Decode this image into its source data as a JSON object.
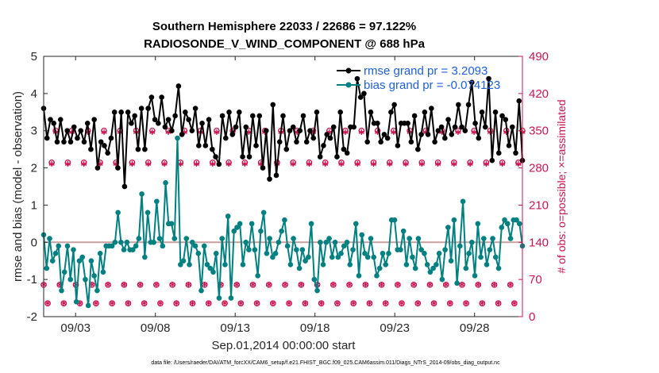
{
  "chart_data": {
    "type": "line",
    "title_line1": "Southern Hemisphere 22033 / 22686 = 97.122%",
    "title_line2": "RADIOSONDE_V_WIND_COMPONENT @ 688 hPa",
    "xlabel": "Sep.01,2014 00:00:00 start",
    "ylabel": "rmse and bias (model - observation)",
    "ylabel_right": "# of obs: o=possible; ×=assimilated",
    "footer": "data file: /Users/raeder/DAI/ATM_forcXX/CAM6_setup/f.e21.FHIST_BGC.f09_025.CAM6assim.011/Diags_NTrS_2014-09/obs_diag_output.nc",
    "xlim": [
      1.0,
      31.0
    ],
    "ylim": [
      -2,
      5
    ],
    "ylim_right": [
      0,
      490
    ],
    "x_ticks": [
      3,
      8,
      13,
      18,
      23,
      28
    ],
    "x_tick_labels": [
      "09/03",
      "09/08",
      "09/13",
      "09/18",
      "09/23",
      "09/28"
    ],
    "y_ticks": [
      -2,
      -1,
      0,
      1,
      2,
      3,
      4,
      5
    ],
    "y_tick_labels": [
      "-2",
      "-1",
      "0",
      "1",
      "2",
      "3",
      "4",
      "5"
    ],
    "y_right_ticks": [
      0,
      70,
      140,
      210,
      280,
      350,
      420,
      490
    ],
    "y_right_tick_labels": [
      "0",
      "70",
      "140",
      "210",
      "280",
      "350",
      "420",
      "490"
    ],
    "zero_line": 0,
    "legend_position": "top-right",
    "colors": {
      "rmse": "#000000",
      "bias": "#008080",
      "obs": "#cc1450",
      "zero_line": "#c8a0a0",
      "legend_text": "#1f5fdc"
    },
    "series": [
      {
        "name": "rmse grand pr = 3.2093",
        "values": [
          3.6,
          2.8,
          3.3,
          3.2,
          2.7,
          3.3,
          2.7,
          3.0,
          2.7,
          3.1,
          2.8,
          3.0,
          2.7,
          3.2,
          2.5,
          3.3,
          2.0,
          2.7,
          2.6,
          2.4,
          2.8,
          3.5,
          2.0,
          3.5,
          1.5,
          3.5,
          3.2,
          3.4,
          2.5,
          3.6,
          2.5,
          3.6,
          3.9,
          3.3,
          3.2,
          3.9,
          3.1,
          3.3,
          3.0,
          3.4,
          4.2,
          2.9,
          3.5,
          3.3,
          3.0,
          3.6,
          2.6,
          3.2,
          2.6,
          3.3,
          2.5,
          2.3,
          2.1,
          3.4,
          2.8,
          3.5,
          2.9,
          3.1,
          3.5,
          2.3,
          3.1,
          2.3,
          3.4,
          2.6,
          3.4,
          2.0,
          3.0,
          1.7,
          3.7,
          1.8,
          2.7,
          3.4,
          2.5,
          3.0,
          3.1,
          2.7,
          3.0,
          3.4,
          2.7,
          3.0,
          2.8,
          3.5,
          2.3,
          2.6,
          2.9,
          2.8,
          3.1,
          2.3,
          3.5,
          2.5,
          2.4,
          3.1,
          3.1,
          4.4,
          3.9,
          4.0,
          2.7,
          3.5,
          3.2,
          3.2,
          2.7,
          2.9,
          2.8,
          3.5,
          3.7,
          2.6,
          3.2,
          3.2,
          3.2,
          2.7,
          3.4,
          2.5,
          2.9,
          3.5,
          2.9,
          3.6,
          2.7,
          3.0,
          3.1,
          2.8,
          3.3,
          2.9,
          3.1,
          3.7,
          3.1,
          3.0,
          3.7,
          4.3,
          3.2,
          2.8,
          3.5,
          3.1,
          4.4,
          2.2,
          3.5,
          2.4,
          3.4,
          3.3,
          2.6,
          3.1,
          2.4,
          3.8,
          2.2
        ]
      },
      {
        "name": "bias grand pr = -0.074123",
        "values": [
          0.2,
          -0.7,
          0.1,
          -0.5,
          -0.3,
          -0.1,
          -1.3,
          -0.8,
          -0.1,
          -1.0,
          -0.2,
          -1.6,
          -0.5,
          -0.4,
          -1.0,
          -1.7,
          -0.5,
          -0.9,
          -1.3,
          -0.3,
          -0.8,
          -0.1,
          -0.1,
          -0.1,
          0.0,
          0.8,
          0.0,
          -0.2,
          0.0,
          -0.2,
          -0.2,
          -0.1,
          0.1,
          1.3,
          -0.4,
          0.8,
          0.0,
          0.0,
          1.1,
          0.1,
          -0.1,
          1.6,
          0.5,
          0.5,
          0.1,
          2.8,
          -0.6,
          -0.5,
          0.1,
          -0.6,
          0.0,
          -0.1,
          -0.3,
          -1.3,
          -0.1,
          -0.6,
          -0.7,
          -0.8,
          -0.3,
          -1.5,
          0.1,
          -0.6,
          0.7,
          -1.5,
          0.3,
          0.4,
          0.5,
          -0.6,
          0.0,
          -0.2,
          0.5,
          -0.2,
          -0.9,
          0.3,
          0.8,
          -0.3,
          0.1,
          -0.4,
          -0.3,
          0.0,
          0.3,
          0.6,
          -0.1,
          -0.6,
          0.1,
          -0.2,
          -0.7,
          -0.2,
          -0.5,
          -0.4,
          0.5,
          -1.0,
          -1.3,
          0.0,
          -0.6,
          0.0,
          0.1,
          -0.4,
          0.0,
          -0.4,
          -0.3,
          -0.1,
          0.0,
          -0.6,
          -0.2,
          0.5,
          -0.9,
          0.2,
          -0.3,
          -0.4,
          0.1,
          -0.4,
          -0.9,
          -0.7,
          -0.3,
          -0.6,
          -0.3,
          0.6,
          0.6,
          -0.2,
          -0.2,
          0.3,
          -0.6,
          0.1,
          -0.4,
          -0.7,
          0.1,
          -0.2,
          -0.3,
          -0.6,
          -0.8,
          -0.7,
          -0.6,
          -0.3,
          -1.0,
          -0.2,
          0.4,
          -0.5,
          0.6,
          -1.1,
          -0.1,
          1.1,
          -0.7,
          -0.3,
          0.0,
          -0.9,
          0.5,
          -0.4,
          0.1,
          -0.6,
          -0.2,
          0.1,
          -0.4,
          -0.7,
          0.4,
          0.6,
          0.5,
          0.1,
          0.6,
          0.6,
          0.5,
          -0.1
        ]
      },
      {
        "name": "obs possible",
        "marker": "o",
        "values": [
          60,
          25,
          290,
          350,
          60,
          25,
          290,
          350,
          60,
          25,
          290,
          350,
          60,
          25,
          290,
          350,
          60,
          25,
          290,
          350,
          60,
          25,
          290,
          350,
          60,
          25,
          290,
          350,
          60,
          25,
          290,
          350,
          60,
          25,
          290,
          350,
          60,
          25,
          290,
          350,
          60,
          25,
          290,
          350,
          60,
          25,
          290,
          350,
          60,
          25,
          290,
          350,
          60,
          25,
          290,
          350,
          60,
          25,
          290,
          350,
          60,
          25,
          290,
          350,
          60,
          25,
          290,
          350,
          60,
          25,
          290,
          350,
          60,
          25,
          290,
          350,
          60,
          25,
          290,
          350,
          60,
          25,
          290,
          350,
          60,
          25,
          290,
          350,
          60,
          25,
          290,
          350,
          60,
          25,
          290,
          350,
          60,
          25,
          290,
          350,
          60,
          25,
          290,
          350,
          60,
          25,
          290,
          350,
          60,
          25,
          290,
          350,
          60,
          25,
          290,
          350,
          60,
          25,
          290,
          350
        ]
      },
      {
        "name": "obs assimilated",
        "marker": "*",
        "values": [
          58,
          23,
          285,
          345,
          58,
          23,
          285,
          345,
          58,
          23,
          285,
          345,
          58,
          23,
          285,
          345,
          58,
          23,
          285,
          345,
          58,
          23,
          285,
          345,
          58,
          23,
          285,
          345,
          58,
          23,
          285,
          345,
          58,
          23,
          285,
          345,
          58,
          23,
          285,
          345,
          58,
          23,
          285,
          345,
          58,
          23,
          285,
          345,
          58,
          23,
          285,
          345,
          58,
          23,
          285,
          345,
          58,
          23,
          285,
          345,
          58,
          23,
          285,
          345,
          58,
          23,
          285,
          345,
          58,
          23,
          285,
          345,
          58,
          23,
          285,
          345,
          58,
          23,
          285,
          345,
          58,
          23,
          285,
          345,
          58,
          23,
          285,
          345,
          58,
          23,
          285,
          345,
          58,
          23,
          285,
          345,
          58,
          23,
          285,
          345,
          58,
          23,
          285,
          345,
          58,
          23,
          285,
          345,
          58,
          23,
          285,
          345,
          58,
          23,
          285,
          345,
          58,
          23,
          285,
          345
        ]
      }
    ]
  }
}
